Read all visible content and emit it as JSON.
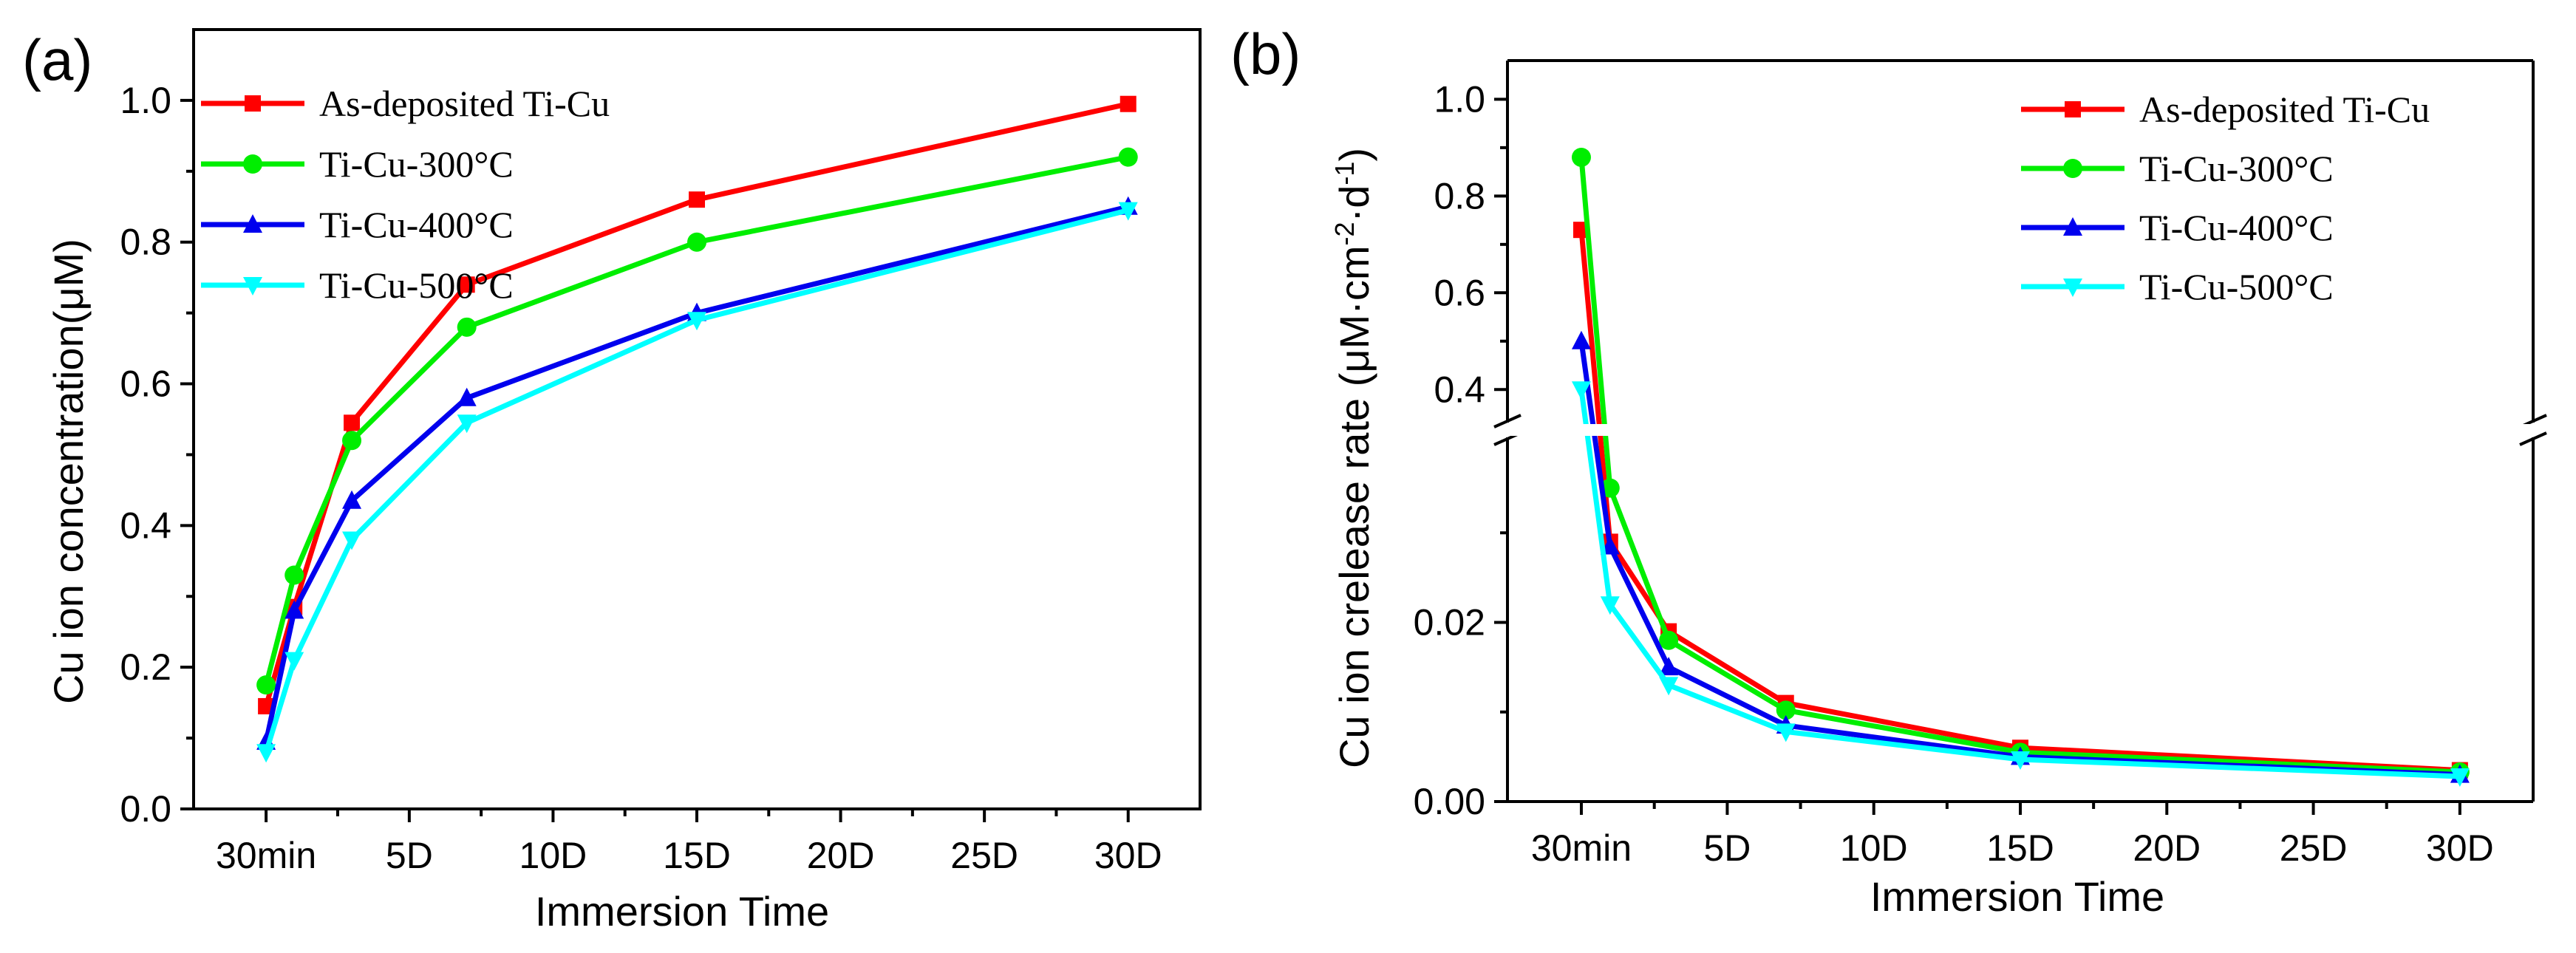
{
  "chart_data": [
    {
      "panel_label": "(a)",
      "type": "line",
      "xlabel": "Immersion Time",
      "ylabel": "Cu ion concentration(μM)",
      "x": [
        0.0208,
        1,
        3,
        7,
        15,
        30
      ],
      "xlim": [
        -2.5,
        32.5
      ],
      "xticks": [
        0.0208,
        5,
        10,
        15,
        20,
        25,
        30
      ],
      "xtick_labels": [
        "30min",
        "5D",
        "10D",
        "15D",
        "20D",
        "25D",
        "30D"
      ],
      "ylim": [
        0,
        1.1
      ],
      "yticks": [
        0,
        0.2,
        0.4,
        0.6,
        0.8,
        1.0
      ],
      "ytick_labels": [
        "0.0",
        "0.2",
        "0.4",
        "0.6",
        "0.8",
        "1.0"
      ],
      "legend_position": "top-left",
      "series": [
        {
          "name": "As-deposited Ti-Cu",
          "color": "#ff0000",
          "marker": "square",
          "values": [
            0.145,
            0.285,
            0.545,
            0.74,
            0.86,
            0.995
          ]
        },
        {
          "name": "Ti-Cu-300°C",
          "color": "#00ee00",
          "marker": "circle",
          "values": [
            0.175,
            0.33,
            0.52,
            0.68,
            0.8,
            0.92
          ]
        },
        {
          "name": "Ti-Cu-400°C",
          "color": "#0000ee",
          "marker": "triangle-up",
          "values": [
            0.095,
            0.28,
            0.435,
            0.58,
            0.7,
            0.85
          ]
        },
        {
          "name": "Ti-Cu-500°C",
          "color": "#00ffff",
          "marker": "triangle-down",
          "values": [
            0.08,
            0.21,
            0.38,
            0.545,
            0.69,
            0.845
          ]
        }
      ]
    },
    {
      "panel_label": "(b)",
      "type": "line",
      "xlabel": "Immersion Time",
      "ylabel_main": "Cu ion crelease rate (μM·cm",
      "ylabel_sup1": "-2",
      "ylabel_mid": "·d",
      "ylabel_sup2": "-1",
      "ylabel_end": ")",
      "x": [
        0.0208,
        1,
        3,
        7,
        15,
        30
      ],
      "xlim": [
        -2.5,
        32.5
      ],
      "xticks": [
        0.0208,
        5,
        10,
        15,
        20,
        25,
        30
      ],
      "xtick_labels": [
        "30min",
        "5D",
        "10D",
        "15D",
        "20D",
        "25D",
        "30D"
      ],
      "y_axis_break": true,
      "ylim_lower": [
        0,
        0.04
      ],
      "ylim_upper": [
        0.35,
        1.08
      ],
      "yticks_lower": [
        0,
        0.01,
        0.02,
        0.03
      ],
      "yticks_lower_labels": [
        "0.00",
        "",
        "0.02",
        ""
      ],
      "yticks_upper": [
        0.4,
        0.6,
        0.8,
        1.0
      ],
      "yticks_upper_labels": [
        "0.4",
        "0.6",
        "0.8",
        "1.0"
      ],
      "legend_position": "top-right",
      "series": [
        {
          "name": "As-deposited Ti-Cu",
          "color": "#ff0000",
          "marker": "square",
          "values": [
            0.73,
            0.029,
            0.019,
            0.011,
            0.006,
            0.0035
          ]
        },
        {
          "name": "Ti-Cu-300°C",
          "color": "#00ee00",
          "marker": "circle",
          "values": [
            0.88,
            0.035,
            0.018,
            0.0102,
            0.0055,
            0.0033
          ]
        },
        {
          "name": "Ti-Cu-400°C",
          "color": "#0000ee",
          "marker": "triangle-up",
          "values": [
            0.5,
            0.0285,
            0.015,
            0.0085,
            0.005,
            0.003
          ]
        },
        {
          "name": "Ti-Cu-500°C",
          "color": "#00ffff",
          "marker": "triangle-down",
          "values": [
            0.4,
            0.022,
            0.013,
            0.0078,
            0.0047,
            0.0028
          ]
        }
      ]
    }
  ]
}
